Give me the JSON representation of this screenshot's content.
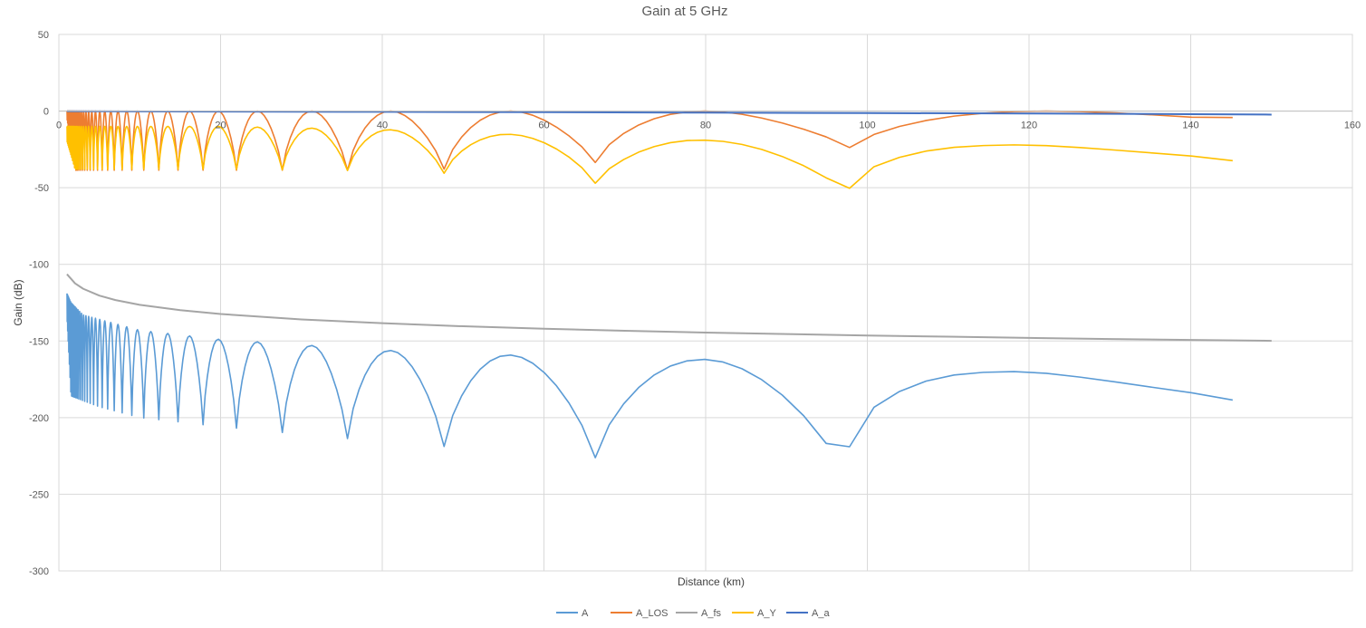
{
  "chart_data": {
    "type": "line",
    "title": "Gain at 5 GHz",
    "xlabel": "Distance (km)",
    "ylabel": "Gain (dB)",
    "xlim": [
      0,
      160
    ],
    "ylim": [
      -300,
      50
    ],
    "x_ticks": [
      0,
      20,
      40,
      60,
      80,
      100,
      120,
      140,
      160
    ],
    "y_ticks": [
      50,
      0,
      -50,
      -100,
      -150,
      -200,
      -250,
      -300
    ],
    "grid": true,
    "legend_position": "bottom",
    "x_range_data": [
      1,
      150
    ],
    "series": [
      {
        "name": "A",
        "color": "#5B9BD5",
        "upper_envelope": {
          "x": [
            1,
            1.5,
            3,
            10,
            20,
            40,
            60,
            80,
            100,
            120,
            140,
            150
          ],
          "y": [
            -119,
            -125,
            -133,
            -143,
            -149,
            -156,
            -160,
            -162,
            -165,
            -170,
            -180,
            -191
          ]
        },
        "lower_envelope": {
          "x": [
            1,
            1.5,
            5,
            10,
            20,
            40,
            60,
            80,
            90,
            95,
            96,
            100,
            110,
            120,
            140,
            150
          ],
          "y": [
            -135,
            -188,
            -195,
            -202,
            -208,
            -218,
            -226,
            -234,
            -240,
            -244,
            -230,
            -210,
            -197,
            -195,
            -193,
            -191
          ]
        }
      },
      {
        "name": "A_LOS",
        "color": "#ED7D31",
        "upper_envelope": {
          "x": [
            1,
            150
          ],
          "y": [
            0,
            0
          ]
        },
        "lower_envelope": {
          "x": [
            1,
            2,
            10,
            20,
            40,
            50,
            60,
            80,
            90,
            100,
            120,
            140,
            150
          ],
          "y": [
            -5,
            -40,
            -40,
            -40,
            -40,
            -39,
            -37,
            -30,
            -27,
            -24,
            -19,
            -14,
            -5
          ]
        }
      },
      {
        "name": "A_fs",
        "color": "#A5A5A5",
        "x": [
          1,
          2,
          3,
          5,
          7,
          10,
          15,
          20,
          30,
          40,
          50,
          60,
          70,
          80,
          90,
          100,
          110,
          120,
          130,
          140,
          150
        ],
        "y": [
          -106.4,
          -112.4,
          -115.9,
          -120.4,
          -123.3,
          -126.4,
          -129.9,
          -132.4,
          -135.9,
          -138.4,
          -140.4,
          -142.0,
          -143.3,
          -144.5,
          -145.5,
          -146.4,
          -147.2,
          -148.0,
          -148.7,
          -149.3,
          -149.9
        ]
      },
      {
        "name": "A_Y",
        "color": "#FFC000",
        "upper_envelope": {
          "x": [
            1,
            2,
            20,
            40,
            60,
            80,
            100,
            120,
            140,
            150
          ],
          "y": [
            -10,
            -10,
            -10,
            -12,
            -16,
            -19,
            -20,
            -22,
            -27,
            -34
          ]
        },
        "lower_envelope": {
          "x": [
            1,
            2,
            20,
            40,
            50,
            60,
            70,
            80,
            90,
            96,
            100,
            110,
            120,
            140,
            150
          ],
          "y": [
            -20,
            -39,
            -39,
            -40,
            -42,
            -45,
            -50,
            -53,
            -55,
            -56,
            -46,
            -38,
            -36,
            -35,
            -34
          ]
        }
      },
      {
        "name": "A_a",
        "color": "#4472C4",
        "x": [
          1,
          20,
          40,
          60,
          80,
          100,
          120,
          140,
          150
        ],
        "y": [
          -0.1,
          -0.3,
          -0.5,
          -0.7,
          -1.0,
          -1.3,
          -1.6,
          -2.0,
          -2.3
        ]
      }
    ]
  }
}
